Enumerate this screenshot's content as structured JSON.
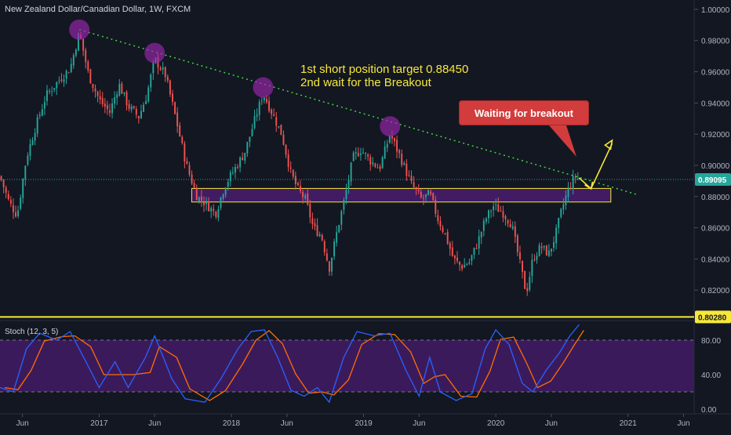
{
  "header": {
    "title": "New Zealand Dollar/Canadian Dollar, 1W, FXCM"
  },
  "indicator": {
    "label": "Stoch (12, 3, 5)"
  },
  "annotations": {
    "line1": "1st short position target 0.88450",
    "line2": "2nd wait for the Breakout",
    "callout": "Waiting for breakout"
  },
  "colors": {
    "background": "#131722",
    "up": "#26a69a",
    "down": "#ef5350",
    "trendline": "#3fd43f",
    "support": "#f7e83a",
    "zone_fill": "#4a1d6e",
    "zone_border": "#f7e83a",
    "peak_marker": "#9c27b0",
    "stoch_k": "#2962ff",
    "stoch_d": "#ff6d00",
    "stoch_band": "#3b1a5c"
  },
  "chart_data": {
    "type": "line",
    "symbol": "NZDCAD",
    "timeframe": "1W",
    "price_axis": {
      "ticks": [
        "1.00000",
        "0.98000",
        "0.96000",
        "0.94000",
        "0.92000",
        "0.90000",
        "0.88000",
        "0.86000",
        "0.84000",
        "0.82000"
      ],
      "range": [
        0.802,
        1.006
      ]
    },
    "time_axis": {
      "ticks": [
        "Jun",
        "2017",
        "Jun",
        "2018",
        "Jun",
        "2019",
        "Jun",
        "2020",
        "Jun",
        "2021",
        "Jun"
      ],
      "range": [
        2016.25,
        2021.5
      ]
    },
    "price_labels": [
      {
        "value": "0.89095",
        "kind": "last"
      },
      {
        "value": "0.80280",
        "kind": "support"
      }
    ],
    "support_level": 0.8028,
    "current_price": 0.89095,
    "resistance_zone": [
      0.8765,
      0.8852
    ],
    "trendline": [
      {
        "x": 2016.85,
        "y": 0.987
      },
      {
        "x": 2020.8,
        "y": 0.888
      }
    ],
    "peaks": [
      {
        "x": 2016.85,
        "y": 0.987
      },
      {
        "x": 2017.42,
        "y": 0.972
      },
      {
        "x": 2018.24,
        "y": 0.95
      },
      {
        "x": 2019.2,
        "y": 0.925
      }
    ],
    "price_path": [
      {
        "x": 2016.25,
        "y": 0.893
      },
      {
        "x": 2016.32,
        "y": 0.876
      },
      {
        "x": 2016.38,
        "y": 0.868
      },
      {
        "x": 2016.45,
        "y": 0.905
      },
      {
        "x": 2016.52,
        "y": 0.925
      },
      {
        "x": 2016.6,
        "y": 0.945
      },
      {
        "x": 2016.7,
        "y": 0.955
      },
      {
        "x": 2016.78,
        "y": 0.962
      },
      {
        "x": 2016.85,
        "y": 0.985
      },
      {
        "x": 2016.92,
        "y": 0.958
      },
      {
        "x": 2017.0,
        "y": 0.942
      },
      {
        "x": 2017.08,
        "y": 0.934
      },
      {
        "x": 2017.15,
        "y": 0.952
      },
      {
        "x": 2017.22,
        "y": 0.938
      },
      {
        "x": 2017.3,
        "y": 0.931
      },
      {
        "x": 2017.36,
        "y": 0.945
      },
      {
        "x": 2017.42,
        "y": 0.968
      },
      {
        "x": 2017.5,
        "y": 0.958
      },
      {
        "x": 2017.58,
        "y": 0.93
      },
      {
        "x": 2017.66,
        "y": 0.9
      },
      {
        "x": 2017.74,
        "y": 0.88
      },
      {
        "x": 2017.8,
        "y": 0.876
      },
      {
        "x": 2017.88,
        "y": 0.869
      },
      {
        "x": 2017.95,
        "y": 0.887
      },
      {
        "x": 2018.02,
        "y": 0.897
      },
      {
        "x": 2018.1,
        "y": 0.908
      },
      {
        "x": 2018.18,
        "y": 0.93
      },
      {
        "x": 2018.24,
        "y": 0.946
      },
      {
        "x": 2018.3,
        "y": 0.935
      },
      {
        "x": 2018.38,
        "y": 0.92
      },
      {
        "x": 2018.45,
        "y": 0.895
      },
      {
        "x": 2018.5,
        "y": 0.885
      },
      {
        "x": 2018.56,
        "y": 0.878
      },
      {
        "x": 2018.62,
        "y": 0.86
      },
      {
        "x": 2018.68,
        "y": 0.855
      },
      {
        "x": 2018.74,
        "y": 0.834
      },
      {
        "x": 2018.8,
        "y": 0.858
      },
      {
        "x": 2018.86,
        "y": 0.88
      },
      {
        "x": 2018.92,
        "y": 0.905
      },
      {
        "x": 2018.98,
        "y": 0.91
      },
      {
        "x": 2019.05,
        "y": 0.903
      },
      {
        "x": 2019.12,
        "y": 0.898
      },
      {
        "x": 2019.2,
        "y": 0.92
      },
      {
        "x": 2019.28,
        "y": 0.905
      },
      {
        "x": 2019.36,
        "y": 0.888
      },
      {
        "x": 2019.44,
        "y": 0.878
      },
      {
        "x": 2019.5,
        "y": 0.882
      },
      {
        "x": 2019.56,
        "y": 0.866
      },
      {
        "x": 2019.62,
        "y": 0.855
      },
      {
        "x": 2019.68,
        "y": 0.84
      },
      {
        "x": 2019.74,
        "y": 0.835
      },
      {
        "x": 2019.8,
        "y": 0.838
      },
      {
        "x": 2019.86,
        "y": 0.85
      },
      {
        "x": 2019.92,
        "y": 0.865
      },
      {
        "x": 2019.98,
        "y": 0.874
      },
      {
        "x": 2020.05,
        "y": 0.87
      },
      {
        "x": 2020.12,
        "y": 0.862
      },
      {
        "x": 2020.18,
        "y": 0.838
      },
      {
        "x": 2020.23,
        "y": 0.818
      },
      {
        "x": 2020.28,
        "y": 0.84
      },
      {
        "x": 2020.34,
        "y": 0.848
      },
      {
        "x": 2020.4,
        "y": 0.843
      },
      {
        "x": 2020.45,
        "y": 0.855
      },
      {
        "x": 2020.5,
        "y": 0.872
      },
      {
        "x": 2020.55,
        "y": 0.885
      },
      {
        "x": 2020.6,
        "y": 0.893
      },
      {
        "x": 2020.63,
        "y": 0.891
      }
    ],
    "projection": [
      {
        "x": 2020.63,
        "y": 0.892
      },
      {
        "x": 2020.72,
        "y": 0.885
      },
      {
        "x": 2020.88,
        "y": 0.914
      }
    ],
    "stochastic": {
      "levels": [
        80,
        20
      ],
      "axis_ticks": [
        "80.00",
        "40.00",
        "0.00"
      ],
      "range": [
        0,
        100
      ],
      "k": [
        {
          "x": 2016.25,
          "y": 25
        },
        {
          "x": 2016.35,
          "y": 20
        },
        {
          "x": 2016.45,
          "y": 70
        },
        {
          "x": 2016.55,
          "y": 88
        },
        {
          "x": 2016.68,
          "y": 80
        },
        {
          "x": 2016.78,
          "y": 90
        },
        {
          "x": 2016.9,
          "y": 55
        },
        {
          "x": 2017.0,
          "y": 25
        },
        {
          "x": 2017.12,
          "y": 55
        },
        {
          "x": 2017.22,
          "y": 25
        },
        {
          "x": 2017.35,
          "y": 60
        },
        {
          "x": 2017.42,
          "y": 85
        },
        {
          "x": 2017.55,
          "y": 35
        },
        {
          "x": 2017.65,
          "y": 12
        },
        {
          "x": 2017.8,
          "y": 8
        },
        {
          "x": 2017.92,
          "y": 35
        },
        {
          "x": 2018.05,
          "y": 70
        },
        {
          "x": 2018.15,
          "y": 90
        },
        {
          "x": 2018.25,
          "y": 92
        },
        {
          "x": 2018.35,
          "y": 60
        },
        {
          "x": 2018.45,
          "y": 22
        },
        {
          "x": 2018.55,
          "y": 15
        },
        {
          "x": 2018.65,
          "y": 25
        },
        {
          "x": 2018.74,
          "y": 8
        },
        {
          "x": 2018.85,
          "y": 60
        },
        {
          "x": 2018.95,
          "y": 90
        },
        {
          "x": 2019.08,
          "y": 85
        },
        {
          "x": 2019.2,
          "y": 88
        },
        {
          "x": 2019.32,
          "y": 45
        },
        {
          "x": 2019.42,
          "y": 15
        },
        {
          "x": 2019.5,
          "y": 60
        },
        {
          "x": 2019.58,
          "y": 20
        },
        {
          "x": 2019.7,
          "y": 10
        },
        {
          "x": 2019.82,
          "y": 18
        },
        {
          "x": 2019.92,
          "y": 70
        },
        {
          "x": 2020.0,
          "y": 92
        },
        {
          "x": 2020.1,
          "y": 75
        },
        {
          "x": 2020.2,
          "y": 30
        },
        {
          "x": 2020.28,
          "y": 20
        },
        {
          "x": 2020.38,
          "y": 45
        },
        {
          "x": 2020.48,
          "y": 65
        },
        {
          "x": 2020.56,
          "y": 85
        },
        {
          "x": 2020.63,
          "y": 98
        }
      ]
    }
  }
}
